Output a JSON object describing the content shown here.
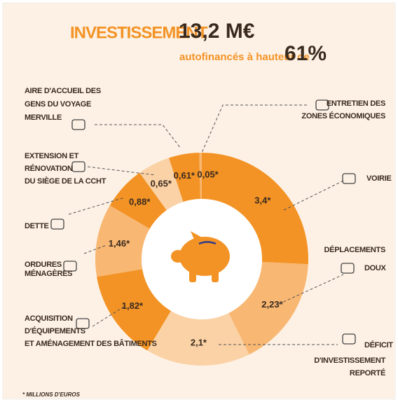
{
  "chart_data": {
    "type": "donut",
    "title": "INVESTISSEMENT",
    "total_label": "13,2 M€",
    "subtitle": "autofinancés à hauteur de",
    "self_financing_label": "61%",
    "footnote": "* MILLIONS D'EUROS",
    "categories": [
      [
        "VOIRIE"
      ],
      [
        "DÉPLACEMENTS",
        "DOUX"
      ],
      [
        "DÉFICIT",
        "D'INVESTISSEMENT",
        "REPORTÉ"
      ],
      [
        "ACQUISITION",
        "D'ÉQUIPEMENTS",
        "ET AMÉNAGEMENT DES BÂTIMENTS"
      ],
      [
        "ORDURES",
        "MÉNAGÈRES"
      ],
      [
        "DETTE"
      ],
      [
        "EXTENSION ET",
        "RÉNOVATION",
        "DU SIÈGE DE LA CCHT"
      ],
      [
        "AIRE D'ACCUEIL DES",
        "GENS DU VOYAGE",
        "MERVILLE"
      ],
      [
        "ENTRETIEN DES",
        "ZONES ÉCONOMIQUES"
      ]
    ],
    "values": [
      3.4,
      2.23,
      2.1,
      1.82,
      1.46,
      0.88,
      0.65,
      0.61,
      0.05
    ],
    "value_labels": [
      "3,4*",
      "2,23*",
      "2,1*",
      "1,82*",
      "1,46*",
      "0,88*",
      "0,65*",
      "0,61*",
      "0,05*"
    ],
    "colors": [
      "#f39325",
      "#f8b772",
      "#fbd2a6",
      "#f39325",
      "#f8b772",
      "#f39325",
      "#fbd2a6",
      "#f39325",
      "#f8b772"
    ]
  }
}
